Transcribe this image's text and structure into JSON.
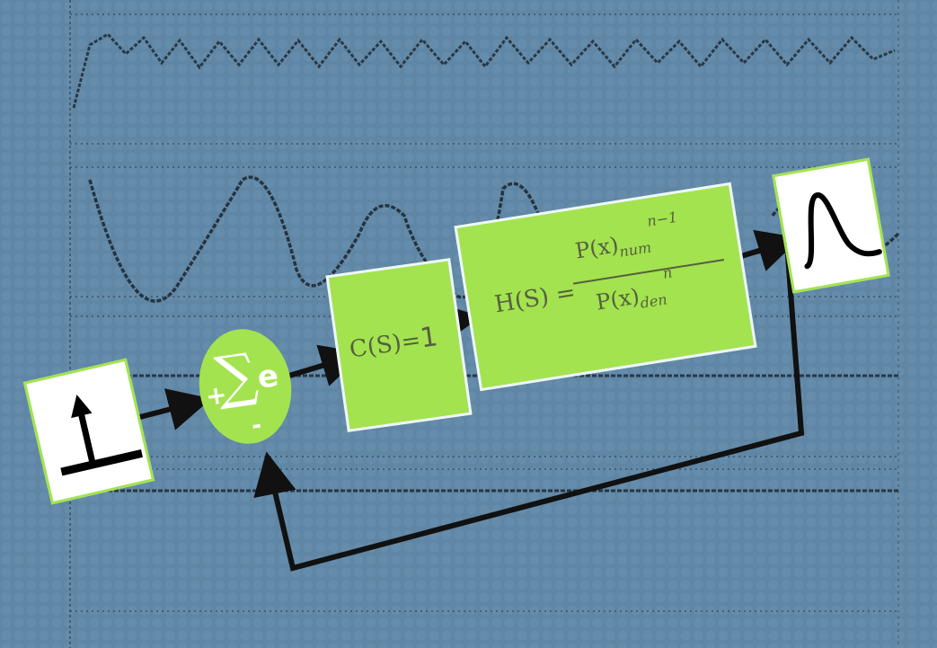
{
  "summing_junction": {
    "sigma": "∑",
    "plus": "+",
    "minus": "-",
    "error": "e"
  },
  "controller": {
    "label_lhs": "C(S)=",
    "label_rhs": "1"
  },
  "plant": {
    "lhs": "H(S) =",
    "num_base": "P(x)",
    "num_sub": "num",
    "num_sup": "n−1",
    "den_base": "P(x)",
    "den_sub": "den",
    "den_sup": "n"
  },
  "colors": {
    "background": "#5f86a4",
    "block_fill": "#a3e34f",
    "block_border": "#eef6ff",
    "signal_line": "#111111",
    "text_dark": "#55603f"
  },
  "icons": {
    "input": "step-input-icon",
    "output": "impulse-response-icon"
  }
}
